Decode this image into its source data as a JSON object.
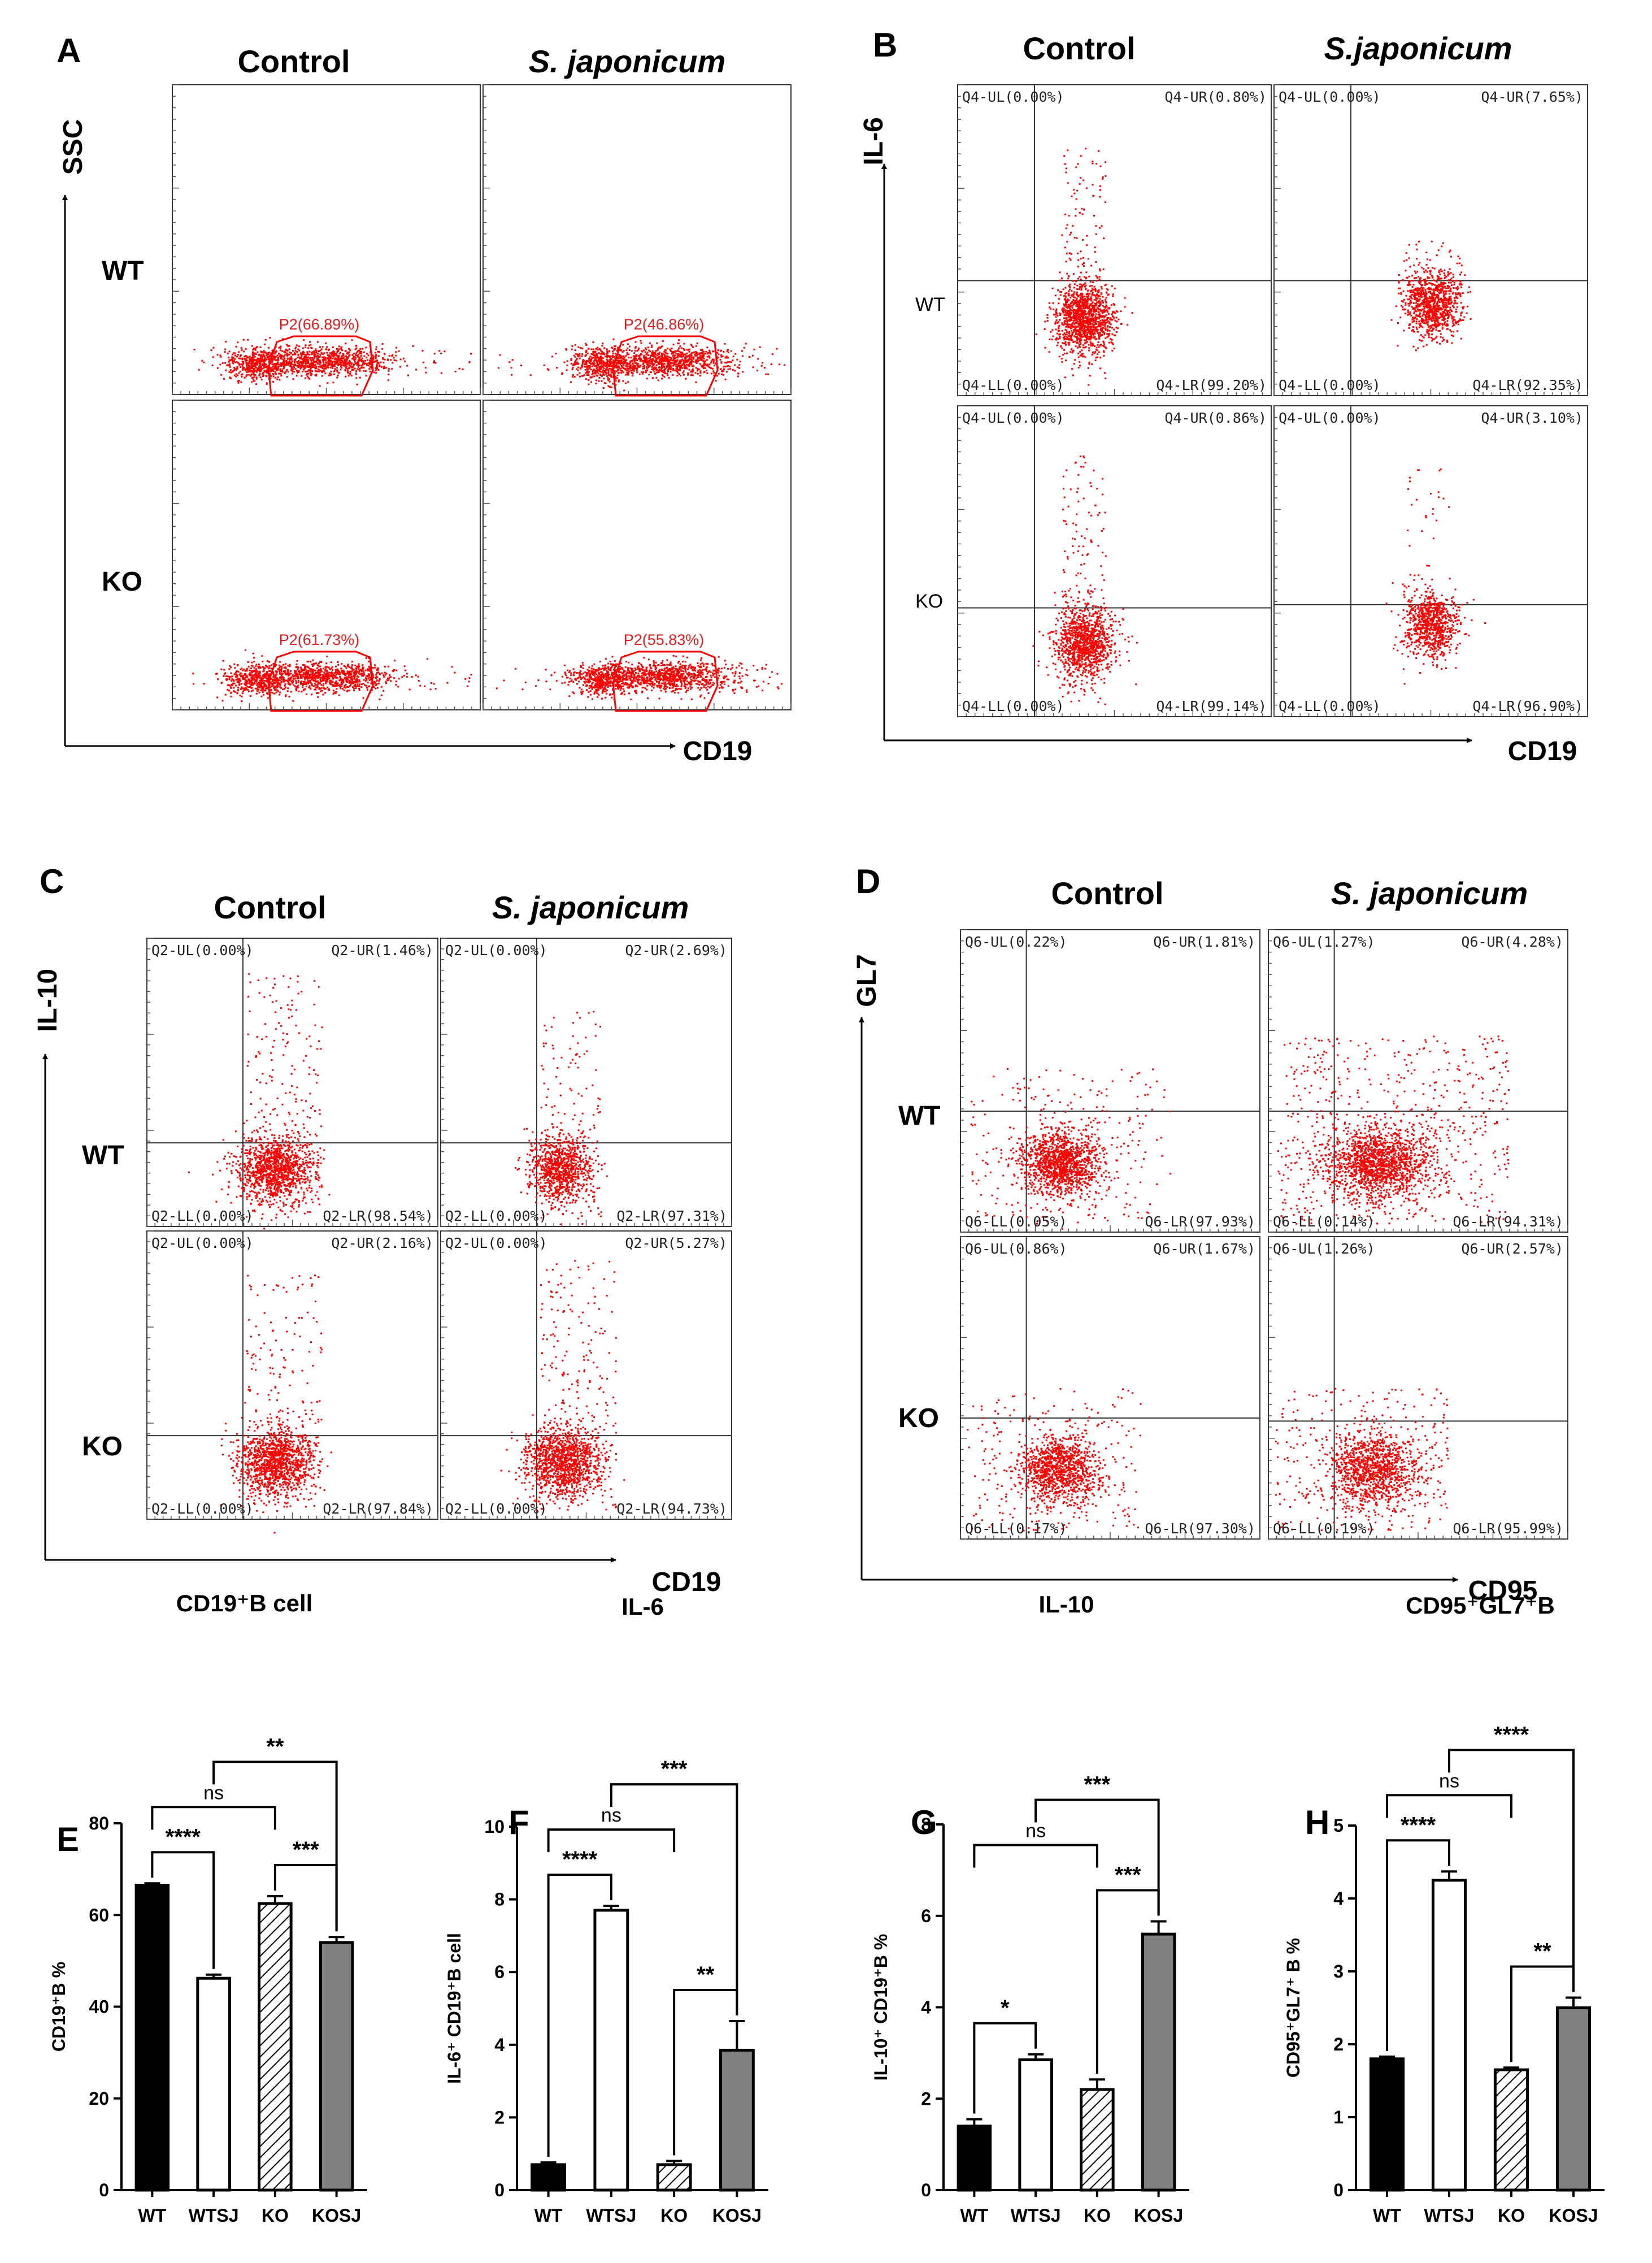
{
  "colors": {
    "dot": "#ff0000",
    "wt_bar": "#000000",
    "wtsj_bar": "#ffffff",
    "ko_bar": "#ffffff",
    "kosj_bar": "#808080"
  },
  "panel_A": {
    "letter": "A",
    "cols": [
      "Control",
      "S. japonicum"
    ],
    "rows": [
      "WT",
      "KO"
    ],
    "y_axis": "SSC",
    "x_axis": "CD19",
    "gates": [
      "P2(66.89%)",
      "P2(46.86%)",
      "P2(61.73%)",
      "P2(55.83%)"
    ]
  },
  "panel_B": {
    "letter": "B",
    "cols": [
      "Control",
      "S.japonicum"
    ],
    "rows": [
      "WT",
      "KO"
    ],
    "y_axis": "IL-6",
    "x_axis": "CD19",
    "quads": [
      [
        "Q4-UL(0.00%)",
        "Q4-UR(0.80%)",
        "Q4-LL(0.00%)",
        "Q4-LR(99.20%)"
      ],
      [
        "Q4-UL(0.00%)",
        "Q4-UR(7.65%)",
        "Q4-LL(0.00%)",
        "Q4-LR(92.35%)"
      ],
      [
        "Q4-UL(0.00%)",
        "Q4-UR(0.86%)",
        "Q4-LL(0.00%)",
        "Q4-LR(99.14%)"
      ],
      [
        "Q4-UL(0.00%)",
        "Q4-UR(3.10%)",
        "Q4-LL(0.00%)",
        "Q4-LR(96.90%)"
      ]
    ]
  },
  "panel_C": {
    "letter": "C",
    "cols": [
      "Control",
      "S. japonicum"
    ],
    "rows": [
      "WT",
      "KO"
    ],
    "y_axis": "IL-10",
    "x_axis": "CD19",
    "quads": [
      [
        "Q2-UL(0.00%)",
        "Q2-UR(1.46%)",
        "Q2-LL(0.00%)",
        "Q2-LR(98.54%)"
      ],
      [
        "Q2-UL(0.00%)",
        "Q2-UR(2.69%)",
        "Q2-LL(0.00%)",
        "Q2-LR(97.31%)"
      ],
      [
        "Q2-UL(0.00%)",
        "Q2-UR(2.16%)",
        "Q2-LL(0.00%)",
        "Q2-LR(97.84%)"
      ],
      [
        "Q2-UL(0.00%)",
        "Q2-UR(5.27%)",
        "Q2-LL(0.00%)",
        "Q2-LR(94.73%)"
      ]
    ]
  },
  "panel_D": {
    "letter": "D",
    "cols": [
      "Control",
      "S. japonicum"
    ],
    "rows": [
      "WT",
      "KO"
    ],
    "y_axis": "GL7",
    "x_axis": "CD95",
    "quads": [
      [
        "Q6-UL(0.22%)",
        "Q6-UR(1.81%)",
        "Q6-LL(0.05%)",
        "Q6-LR(97.93%)"
      ],
      [
        "Q6-UL(1.27%)",
        "Q6-UR(4.28%)",
        "Q6-LL(0.14%)",
        "Q6-LR(94.31%)"
      ],
      [
        "Q6-UL(0.86%)",
        "Q6-UR(1.67%)",
        "Q6-LL(0.17%)",
        "Q6-LR(97.30%)"
      ],
      [
        "Q6-UL(1.26%)",
        "Q6-UR(2.57%)",
        "Q6-LL(0.19%)",
        "Q6-LR(95.99%)"
      ]
    ]
  },
  "chart_data": [
    {
      "panel": "E",
      "type": "bar",
      "title": "CD19⁺B cell",
      "categories": [
        "WT",
        "WTSJ",
        "KO",
        "KOSJ"
      ],
      "values": [
        66.5,
        46.2,
        62.5,
        54
      ],
      "errors": [
        0.4,
        0.8,
        1.6,
        1.2
      ],
      "ylabel": "CD19⁺B %",
      "ylim": [
        0,
        80
      ],
      "yticks": [
        "0",
        "20",
        "40",
        "60",
        "80"
      ],
      "comparisons": [
        {
          "pair": [
            0,
            1
          ],
          "label": "****"
        },
        {
          "pair": [
            2,
            3
          ],
          "label": "***"
        },
        {
          "pair": [
            0,
            2
          ],
          "label": "ns"
        },
        {
          "pair": [
            1,
            3
          ],
          "label": "**"
        }
      ]
    },
    {
      "panel": "F",
      "type": "bar",
      "title": "IL-6",
      "categories": [
        "WT",
        "WTSJ",
        "KO",
        "KOSJ"
      ],
      "values": [
        0.7,
        7.7,
        0.7,
        3.85
      ],
      "errors": [
        0.06,
        0.12,
        0.1,
        0.8
      ],
      "ylabel": "IL-6⁺ CD19⁺B cell",
      "ylim": [
        0,
        10
      ],
      "yticks": [
        "0",
        "2",
        "4",
        "6",
        "8",
        "10"
      ],
      "comparisons": [
        {
          "pair": [
            0,
            1
          ],
          "label": "****"
        },
        {
          "pair": [
            2,
            3
          ],
          "label": "**"
        },
        {
          "pair": [
            0,
            2
          ],
          "label": "ns"
        },
        {
          "pair": [
            1,
            3
          ],
          "label": "***"
        }
      ]
    },
    {
      "panel": "G",
      "type": "bar",
      "title": "IL-10",
      "categories": [
        "WT",
        "WTSJ",
        "KO",
        "KOSJ"
      ],
      "values": [
        1.4,
        2.85,
        2.2,
        5.6
      ],
      "errors": [
        0.15,
        0.12,
        0.22,
        0.28
      ],
      "ylabel": "IL-10⁺ CD19⁺B %",
      "ylim": [
        0,
        8
      ],
      "yticks": [
        "0",
        "2",
        "4",
        "6",
        "8"
      ],
      "comparisons": [
        {
          "pair": [
            0,
            1
          ],
          "label": "*"
        },
        {
          "pair": [
            2,
            3
          ],
          "label": "***"
        },
        {
          "pair": [
            0,
            2
          ],
          "label": "ns"
        },
        {
          "pair": [
            1,
            3
          ],
          "label": "***"
        }
      ]
    },
    {
      "panel": "H",
      "type": "bar",
      "title": "CD95⁺GL7⁺B",
      "categories": [
        "WT",
        "WTSJ",
        "KO",
        "KOSJ"
      ],
      "values": [
        1.8,
        4.25,
        1.65,
        2.5
      ],
      "errors": [
        0.03,
        0.12,
        0.03,
        0.14
      ],
      "ylabel": "CD95⁺GL7⁺ B %",
      "ylim": [
        0,
        5
      ],
      "yticks": [
        "0",
        "1",
        "2",
        "3",
        "4",
        "5"
      ],
      "comparisons": [
        {
          "pair": [
            0,
            1
          ],
          "label": "****"
        },
        {
          "pair": [
            2,
            3
          ],
          "label": "**"
        },
        {
          "pair": [
            0,
            2
          ],
          "label": "ns"
        },
        {
          "pair": [
            1,
            3
          ],
          "label": "****"
        }
      ]
    }
  ]
}
